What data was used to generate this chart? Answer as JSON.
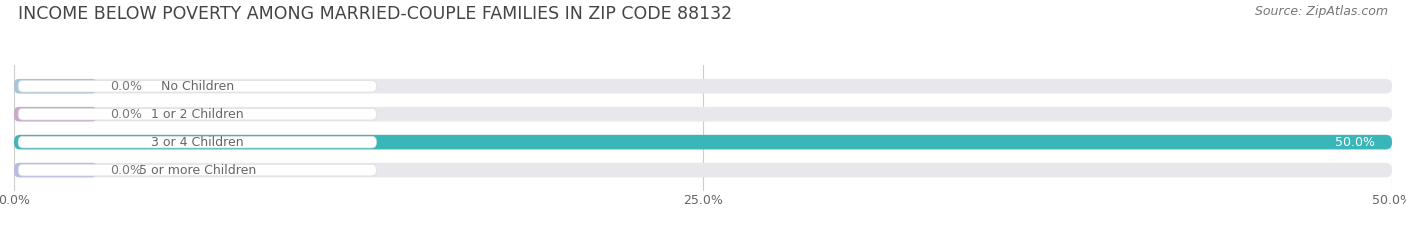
{
  "title": "INCOME BELOW POVERTY AMONG MARRIED-COUPLE FAMILIES IN ZIP CODE 88132",
  "source": "Source: ZipAtlas.com",
  "categories": [
    "No Children",
    "1 or 2 Children",
    "3 or 4 Children",
    "5 or more Children"
  ],
  "values": [
    0.0,
    0.0,
    50.0,
    0.0
  ],
  "bar_colors": [
    "#a8c4d8",
    "#c9a8c8",
    "#3ab5b8",
    "#b8bce0"
  ],
  "bar_bg_color": "#e8e8ec",
  "xlim": [
    0,
    50.0
  ],
  "xticks": [
    0.0,
    25.0,
    50.0
  ],
  "xtick_labels": [
    "0.0%",
    "25.0%",
    "50.0%"
  ],
  "background_color": "#ffffff",
  "title_fontsize": 12.5,
  "label_fontsize": 9,
  "tick_fontsize": 9,
  "source_fontsize": 9,
  "bar_height": 0.52,
  "label_color": "#666666",
  "value_color_inside": "#ffffff",
  "value_color_outside": "#777777",
  "title_color": "#444444",
  "source_color": "#777777",
  "grid_color": "#cccccc",
  "pill_bg_color": "#ffffff"
}
